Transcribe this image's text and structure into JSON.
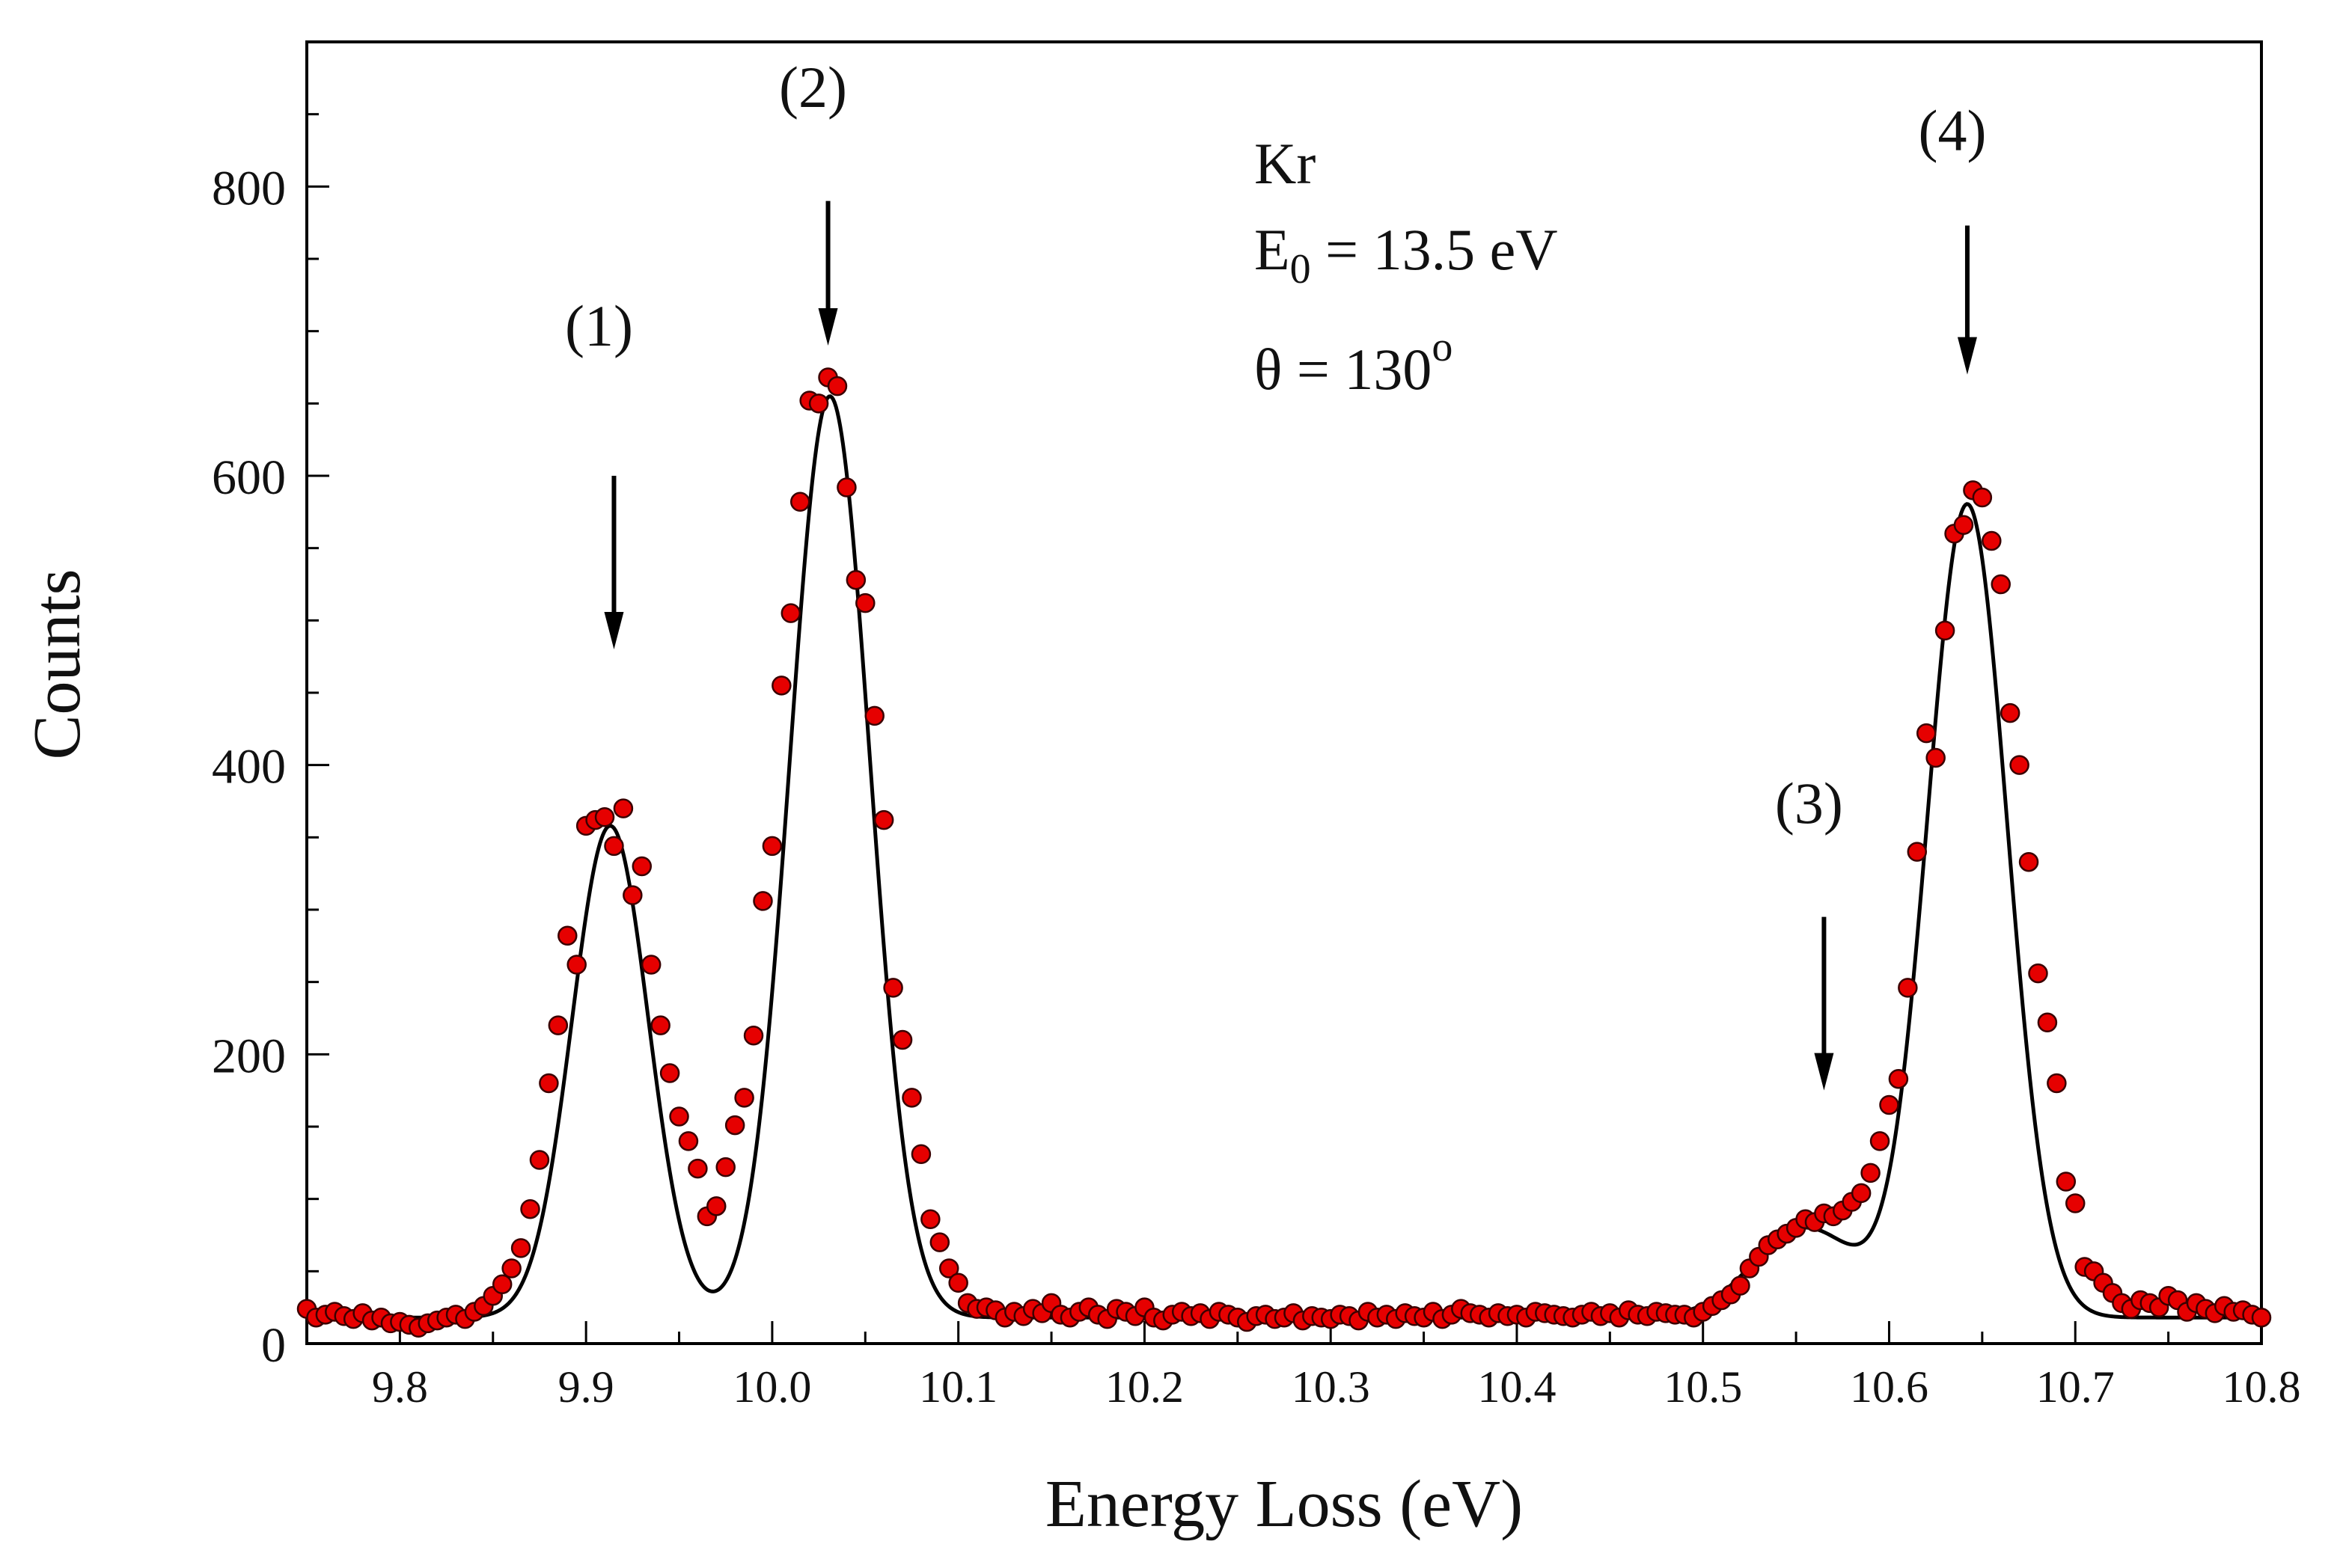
{
  "chart_data": {
    "type": "scatter",
    "title": "",
    "xlabel": "Energy Loss (eV)",
    "ylabel": "Counts",
    "xlim": [
      9.75,
      10.8
    ],
    "ylim": [
      0,
      900
    ],
    "x_ticks": [
      9.8,
      9.9,
      10.0,
      10.1,
      10.2,
      10.3,
      10.4,
      10.5,
      10.6,
      10.7,
      10.8
    ],
    "x_tick_labels": [
      "9.8",
      "9.9",
      "10.0",
      "10.1",
      "10.2",
      "10.3",
      "10.4",
      "10.5",
      "10.6",
      "10.7",
      "10.8"
    ],
    "y_ticks": [
      0,
      200,
      400,
      600,
      800
    ],
    "y_tick_labels": [
      "0",
      "200",
      "400",
      "600",
      "800"
    ],
    "y_minor_step": 50,
    "x_minor_step": 0.05,
    "grid": false,
    "annotation_lines": {
      "species": "Kr",
      "energy_prefix": "E",
      "energy_subscript": "0",
      "energy_value": " = 13.5 eV",
      "angle_text": "θ = 130",
      "angle_superscript": "o"
    },
    "peaks": [
      {
        "label": "(1)",
        "x": 9.915,
        "arrow_from_y": 600,
        "arrow_to_y": 480,
        "label_y": 690
      },
      {
        "label": "(2)",
        "x": 10.03,
        "arrow_from_y": 790,
        "arrow_to_y": 690,
        "label_y": 855
      },
      {
        "label": "(3)",
        "x": 10.565,
        "arrow_from_y": 295,
        "arrow_to_y": 175,
        "label_y": 360
      },
      {
        "label": "(4)",
        "x": 10.642,
        "arrow_from_y": 773,
        "arrow_to_y": 670,
        "label_y": 825
      }
    ],
    "series": [
      {
        "name": "Measured counts",
        "marker": "circle",
        "color": "#e60000",
        "edge_color": "#3a0000",
        "x": [
          9.75,
          9.755,
          9.76,
          9.765,
          9.77,
          9.775,
          9.78,
          9.785,
          9.79,
          9.795,
          9.8,
          9.805,
          9.81,
          9.815,
          9.82,
          9.825,
          9.83,
          9.835,
          9.84,
          9.845,
          9.85,
          9.855,
          9.86,
          9.865,
          9.87,
          9.875,
          9.88,
          9.885,
          9.89,
          9.895,
          9.9,
          9.905,
          9.91,
          9.915,
          9.92,
          9.925,
          9.93,
          9.935,
          9.94,
          9.945,
          9.95,
          9.955,
          9.96,
          9.965,
          9.97,
          9.975,
          9.98,
          9.985,
          9.99,
          9.995,
          10.0,
          10.005,
          10.01,
          10.015,
          10.02,
          10.025,
          10.03,
          10.035,
          10.04,
          10.045,
          10.05,
          10.055,
          10.06,
          10.065,
          10.07,
          10.075,
          10.08,
          10.085,
          10.09,
          10.095,
          10.1,
          10.105,
          10.11,
          10.115,
          10.12,
          10.125,
          10.13,
          10.135,
          10.14,
          10.145,
          10.15,
          10.155,
          10.16,
          10.165,
          10.17,
          10.175,
          10.18,
          10.185,
          10.19,
          10.195,
          10.2,
          10.205,
          10.21,
          10.215,
          10.22,
          10.225,
          10.23,
          10.235,
          10.24,
          10.245,
          10.25,
          10.255,
          10.26,
          10.265,
          10.27,
          10.275,
          10.28,
          10.285,
          10.29,
          10.295,
          10.3,
          10.305,
          10.31,
          10.315,
          10.32,
          10.325,
          10.33,
          10.335,
          10.34,
          10.345,
          10.35,
          10.355,
          10.36,
          10.365,
          10.37,
          10.375,
          10.38,
          10.385,
          10.39,
          10.395,
          10.4,
          10.405,
          10.41,
          10.415,
          10.42,
          10.425,
          10.43,
          10.435,
          10.44,
          10.445,
          10.45,
          10.455,
          10.46,
          10.465,
          10.47,
          10.475,
          10.48,
          10.485,
          10.49,
          10.495,
          10.5,
          10.505,
          10.51,
          10.515,
          10.52,
          10.525,
          10.53,
          10.535,
          10.54,
          10.545,
          10.55,
          10.555,
          10.56,
          10.565,
          10.57,
          10.575,
          10.58,
          10.585,
          10.59,
          10.595,
          10.6,
          10.605,
          10.61,
          10.615,
          10.62,
          10.625,
          10.63,
          10.635,
          10.64,
          10.645,
          10.65,
          10.655,
          10.66,
          10.665,
          10.67,
          10.675,
          10.68,
          10.685,
          10.69,
          10.695,
          10.7,
          10.705,
          10.71,
          10.715,
          10.72,
          10.725,
          10.73,
          10.735,
          10.74,
          10.745,
          10.75,
          10.755,
          10.76,
          10.765,
          10.77,
          10.775,
          10.78,
          10.785,
          10.79,
          10.795,
          10.8
        ],
        "y": [
          24,
          18,
          20,
          22,
          19,
          17,
          21,
          16,
          18,
          14,
          15,
          13,
          11,
          14,
          16,
          18,
          20,
          17,
          22,
          26,
          33,
          41,
          52,
          66,
          93,
          127,
          180,
          220,
          282,
          262,
          358,
          362,
          364,
          344,
          370,
          310,
          330,
          262,
          220,
          187,
          157,
          140,
          121,
          88,
          95,
          122,
          151,
          170,
          213,
          306,
          344,
          455,
          505,
          582,
          652,
          650,
          668,
          662,
          592,
          528,
          512,
          434,
          362,
          246,
          210,
          170,
          131,
          86,
          70,
          52,
          42,
          28,
          24,
          25,
          23,
          18,
          22,
          19,
          24,
          21,
          28,
          20,
          18,
          22,
          25,
          20,
          17,
          24,
          22,
          19,
          25,
          18,
          16,
          20,
          22,
          19,
          21,
          17,
          22,
          20,
          18,
          15,
          19,
          20,
          17,
          18,
          21,
          16,
          19,
          18,
          17,
          20,
          19,
          16,
          22,
          18,
          20,
          17,
          21,
          19,
          18,
          22,
          17,
          20,
          24,
          21,
          20,
          18,
          21,
          19,
          20,
          18,
          22,
          21,
          20,
          19,
          18,
          20,
          22,
          19,
          21,
          18,
          23,
          20,
          19,
          22,
          21,
          20,
          20,
          18,
          22,
          26,
          30,
          34,
          40,
          52,
          60,
          68,
          72,
          76,
          80,
          86,
          84,
          90,
          88,
          92,
          98,
          104,
          118,
          140,
          165,
          183,
          246,
          340,
          422,
          405,
          493,
          560,
          566,
          590,
          585,
          555,
          525,
          436,
          400,
          333,
          256,
          222,
          180,
          112,
          97,
          53,
          50,
          42,
          35,
          28,
          24,
          30,
          28,
          25,
          33,
          30,
          22,
          28,
          24,
          21,
          26,
          22,
          23,
          20,
          18
        ]
      },
      {
        "name": "Fit",
        "marker": "line",
        "color": "#000000",
        "baseline": 18,
        "components": [
          {
            "center": 9.913,
            "amplitude": 340,
            "sigma": 0.0205
          },
          {
            "center": 10.031,
            "amplitude": 637,
            "sigma": 0.0215
          },
          {
            "center": 10.555,
            "amplitude": 62,
            "sigma": 0.028
          },
          {
            "center": 10.642,
            "amplitude": 562,
            "sigma": 0.0215
          }
        ]
      }
    ]
  }
}
